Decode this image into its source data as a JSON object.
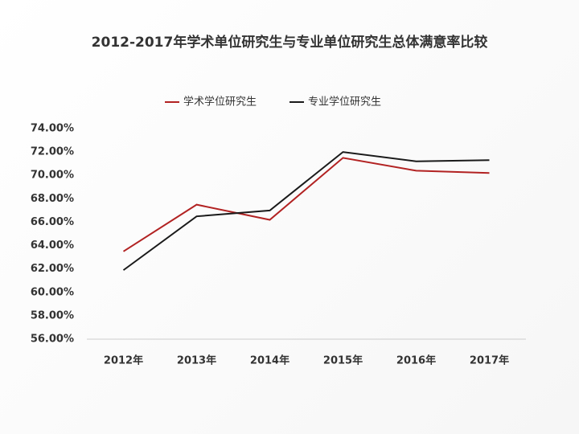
{
  "chart_data": {
    "type": "line",
    "title": "2012-2017年学术单位研究生与专业单位研究生总体满意率比较",
    "categories": [
      "2012年",
      "2013年",
      "2014年",
      "2015年",
      "2016年",
      "2017年"
    ],
    "series": [
      {
        "name": "学术学位研究生",
        "color": "#b22222",
        "values": [
          63.5,
          67.5,
          66.2,
          71.5,
          70.4,
          70.2
        ]
      },
      {
        "name": "专业学位研究生",
        "color": "#1a1a1a",
        "values": [
          61.9,
          66.5,
          67.0,
          72.0,
          71.2,
          71.3
        ]
      }
    ],
    "ylim": [
      56,
      74
    ],
    "yticks": [
      {
        "value": 56,
        "label": "56.00%"
      },
      {
        "value": 58,
        "label": "58.00%"
      },
      {
        "value": 60,
        "label": "60.00%"
      },
      {
        "value": 62,
        "label": "62.00%"
      },
      {
        "value": 64,
        "label": "64.00%"
      },
      {
        "value": 66,
        "label": "66.00%"
      },
      {
        "value": 68,
        "label": "68.00%"
      },
      {
        "value": 70,
        "label": "70.00%"
      },
      {
        "value": 72,
        "label": "72.00%"
      },
      {
        "value": 74,
        "label": "74.00%"
      }
    ],
    "grid": false,
    "legend": "top"
  }
}
